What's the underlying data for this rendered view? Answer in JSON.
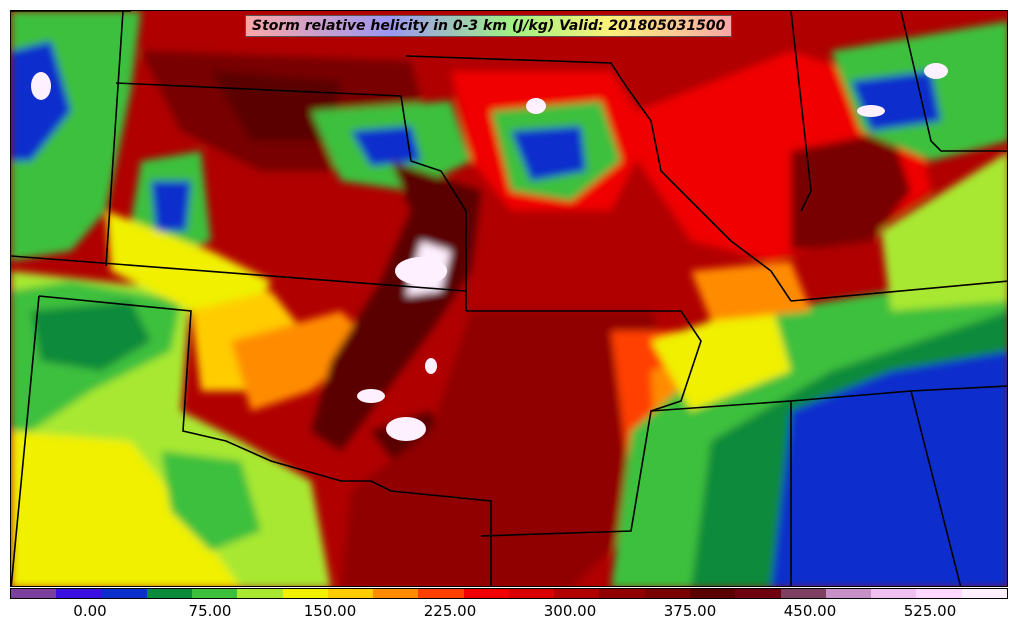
{
  "title": "Storm relative helicity in 0-3 km (J/kg) Valid: 201805031500",
  "colorbar": {
    "colors": [
      "#7b3f9e",
      "#3a10e0",
      "#0a2fcc",
      "#0a8a3a",
      "#3cc03c",
      "#a8e830",
      "#f0f000",
      "#ffcc00",
      "#ff8c00",
      "#ff4000",
      "#f00000",
      "#d80000",
      "#b00000",
      "#900000",
      "#780000",
      "#5a0000",
      "#6e0010",
      "#7e4060",
      "#c890c8",
      "#f0c0f0",
      "#ffd8ff",
      "#fff0ff"
    ],
    "ticks": [
      "0.00",
      "75.00",
      "150.00",
      "225.00",
      "300.00",
      "375.00",
      "450.00",
      "525.00"
    ]
  }
}
